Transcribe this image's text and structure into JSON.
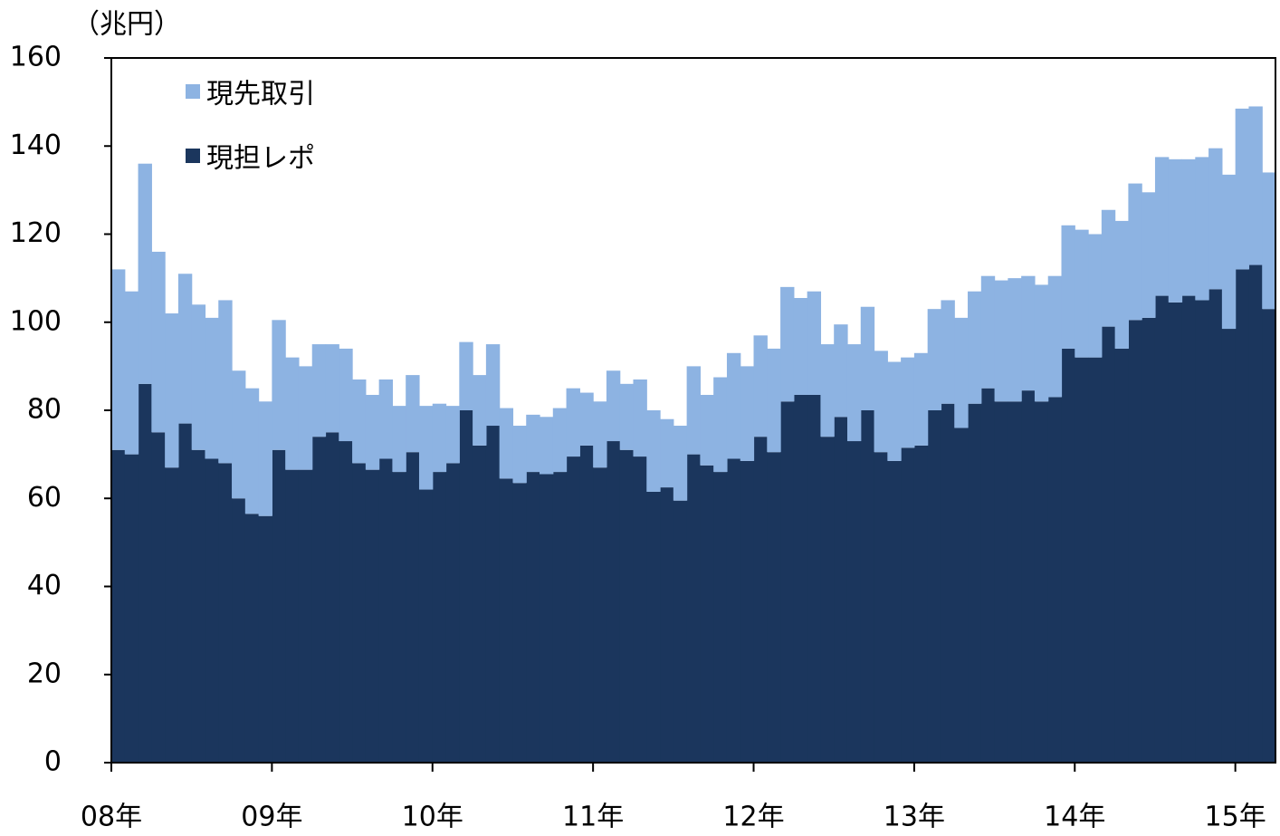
{
  "chart_data": {
    "type": "bar",
    "stacked": true,
    "y_unit_label": "（兆円）",
    "categories": [
      "08年",
      null,
      null,
      null,
      null,
      null,
      null,
      null,
      null,
      null,
      null,
      null,
      "09年",
      null,
      null,
      null,
      null,
      null,
      null,
      null,
      null,
      null,
      null,
      null,
      "10年",
      null,
      null,
      null,
      null,
      null,
      null,
      null,
      null,
      null,
      null,
      null,
      "11年",
      null,
      null,
      null,
      null,
      null,
      null,
      null,
      null,
      null,
      null,
      null,
      "12年",
      null,
      null,
      null,
      null,
      null,
      null,
      null,
      null,
      null,
      null,
      null,
      "13年",
      null,
      null,
      null,
      null,
      null,
      null,
      null,
      null,
      null,
      null,
      null,
      "14年",
      null,
      null,
      null,
      null,
      null,
      null,
      null,
      null,
      null,
      null,
      null,
      "15年",
      null,
      null
    ],
    "series": [
      {
        "name": "現先取引",
        "color": "#8db3e2",
        "values": [
          41,
          37,
          50,
          41,
          35,
          34,
          33,
          32,
          37,
          29,
          28.5,
          26,
          29.5,
          25.5,
          23.5,
          21,
          20,
          21,
          19,
          17,
          18,
          15,
          17.5,
          19,
          15.5,
          13,
          15.5,
          16,
          18.5,
          16,
          13,
          13,
          13,
          14.5,
          15.5,
          12,
          15,
          16,
          15,
          17.5,
          18.5,
          15.5,
          17,
          20,
          16,
          21.5,
          24,
          21.5,
          23,
          23.5,
          26,
          22,
          23.5,
          21,
          21,
          22,
          23.5,
          23,
          22.5,
          20.5,
          21,
          23,
          23.5,
          25,
          25.5,
          25.5,
          27.5,
          28,
          26,
          26.5,
          27.5,
          28,
          29,
          28,
          26.5,
          29,
          31,
          28.5,
          31.5,
          32.5,
          31,
          32.5,
          32,
          35,
          36.5,
          36,
          31
        ]
      },
      {
        "name": "現担レポ",
        "color": "#1b365d",
        "values": [
          71,
          70,
          86,
          75,
          67,
          77,
          71,
          69,
          68,
          60,
          56.5,
          56,
          71,
          66.5,
          66.5,
          74,
          75,
          73,
          68,
          66.5,
          69,
          66,
          70.5,
          62,
          66,
          68,
          80,
          72,
          76.5,
          64.5,
          63.5,
          66,
          65.5,
          66,
          69.5,
          72,
          67,
          73,
          71,
          69.5,
          61.5,
          62.5,
          59.5,
          70,
          67.5,
          66,
          69,
          68.5,
          74,
          70.5,
          82,
          83.5,
          83.5,
          74,
          78.5,
          73,
          80,
          70.5,
          68.5,
          71.5,
          72,
          80,
          81.5,
          76,
          81.5,
          85,
          82,
          82,
          84.5,
          82,
          83,
          94,
          92,
          92,
          99,
          94,
          100.5,
          101,
          106,
          104.5,
          106,
          105,
          107.5,
          98.5,
          112,
          113,
          103
        ]
      }
    ],
    "ylim": [
      0,
      160
    ],
    "yticks": [
      0,
      20,
      40,
      60,
      80,
      100,
      120,
      140,
      160
    ],
    "grid": false,
    "legend": "top-left"
  }
}
